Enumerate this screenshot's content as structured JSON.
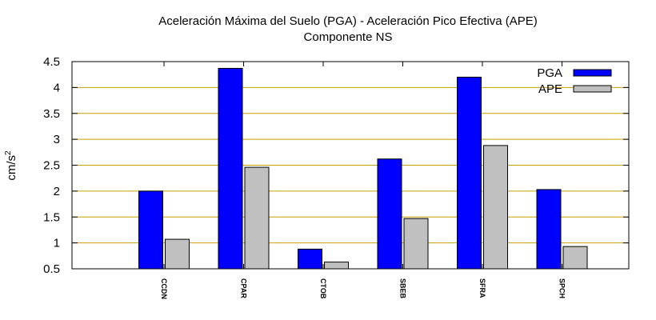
{
  "chart_data": {
    "type": "bar",
    "title": "Aceleración Máxima del Suelo (PGA) -  Aceleración Pico Efectiva (APE)",
    "subtitle": "Componente NS",
    "ylabel_base": "cm/s",
    "ylabel_exp": "2",
    "ylim": [
      0.5,
      4.5
    ],
    "yticks": [
      "0.5",
      "1",
      "1.5",
      "2",
      "2.5",
      "3",
      "3.5",
      "4",
      "4.5"
    ],
    "grid": true,
    "legend_position": "top-right",
    "categories": [
      "CCDN",
      "CPAR",
      "CTOB",
      "SBEB",
      "SFRA",
      "SPCH"
    ],
    "series": [
      {
        "name": "PGA",
        "color": "#0000ff",
        "values": [
          2.0,
          4.37,
          0.88,
          2.62,
          4.2,
          2.03
        ]
      },
      {
        "name": "APE",
        "color": "#c0c0c0",
        "values": [
          1.07,
          2.46,
          0.63,
          1.47,
          2.88,
          0.93
        ]
      }
    ],
    "colors": {
      "grid": "#c8a000",
      "axis": "#000000"
    }
  }
}
